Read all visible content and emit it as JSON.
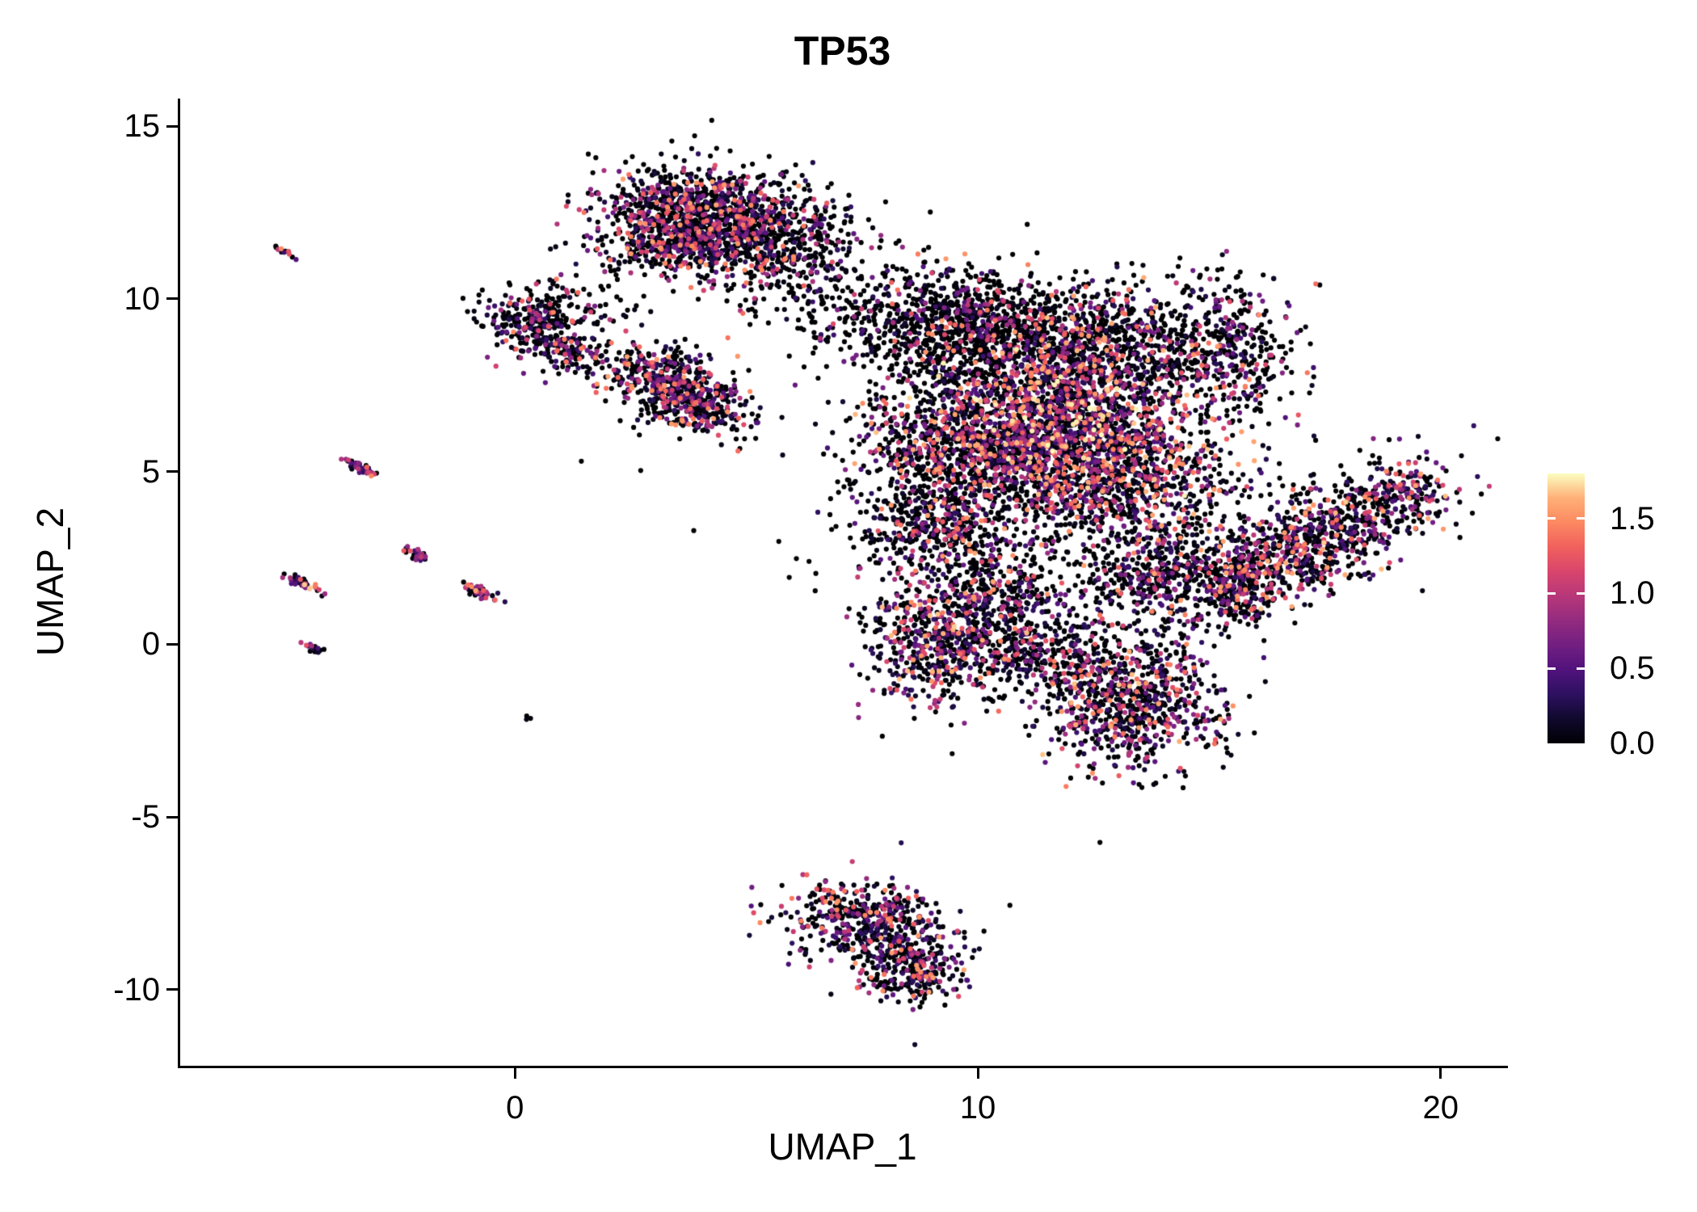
{
  "chart_data": {
    "type": "scatter",
    "title": "TP53",
    "xlabel": "UMAP_1",
    "ylabel": "UMAP_2",
    "xlim": [
      -7.25,
      21.4
    ],
    "ylim": [
      -12.2,
      15.8
    ],
    "x_ticks": [
      0,
      10,
      20
    ],
    "x_tick_labels": [
      "0",
      "10",
      "20"
    ],
    "y_ticks": [
      15,
      10,
      5,
      0,
      -5,
      -10
    ],
    "y_tick_labels": [
      "15",
      "10",
      "5",
      "0",
      "-5",
      "-10"
    ],
    "grid": false,
    "legend_position": "right",
    "background_color": "#ffffff",
    "axis_color": "#000000",
    "point_radius": 3.1,
    "seed": 20231042,
    "colorbar": {
      "min": 0,
      "max": 1.8,
      "ticks": [
        0.0,
        0.5,
        1.0,
        1.5
      ],
      "tick_labels": [
        "0.0",
        "0.5",
        "1.0",
        "1.5"
      ]
    },
    "colormap_name": "magma",
    "colormap_stops": [
      "#000004",
      "#10092d",
      "#2d1160",
      "#51127c",
      "#721f81",
      "#932b80",
      "#b73779",
      "#d8456c",
      "#f1605d",
      "#fc8961",
      "#feb078",
      "#fcfdbf"
    ],
    "clusters": [
      {
        "name": "top-cluster-core",
        "cx": 4.1,
        "cy": 12.6,
        "sx": 1.15,
        "sy": 0.62,
        "rot": -8,
        "n": 850,
        "zero_frac": 0.45,
        "emax": 1.6,
        "skew": 2.0
      },
      {
        "name": "top-cluster-lower",
        "cx": 3.4,
        "cy": 11.7,
        "sx": 0.85,
        "sy": 0.55,
        "rot": 0,
        "n": 450,
        "zero_frac": 0.45,
        "emax": 1.6,
        "skew": 2.0
      },
      {
        "name": "top-cluster-right",
        "cx": 5.4,
        "cy": 11.4,
        "sx": 0.95,
        "sy": 0.65,
        "rot": -20,
        "n": 380,
        "zero_frac": 0.55,
        "emax": 1.5,
        "skew": 2.2
      },
      {
        "name": "top-cluster-east-sparse",
        "cx": 6.4,
        "cy": 12.1,
        "sx": 0.75,
        "sy": 0.75,
        "rot": 0,
        "n": 110,
        "zero_frac": 0.75,
        "emax": 1.3,
        "skew": 2.5
      },
      {
        "name": "upper-left-cluster",
        "cx": 0.45,
        "cy": 9.4,
        "sx": 0.55,
        "sy": 0.5,
        "rot": 0,
        "n": 280,
        "zero_frac": 0.5,
        "emax": 1.5,
        "skew": 2.0
      },
      {
        "name": "upper-left-lobe",
        "cx": 1.15,
        "cy": 8.55,
        "sx": 0.42,
        "sy": 0.35,
        "rot": -30,
        "n": 110,
        "zero_frac": 0.5,
        "emax": 1.5,
        "skew": 2.0
      },
      {
        "name": "upper-bridge-sparse",
        "cx": 1.9,
        "cy": 9.9,
        "sx": 0.5,
        "sy": 0.35,
        "rot": 0,
        "n": 30,
        "zero_frac": 0.7,
        "emax": 1.2,
        "skew": 2.5
      },
      {
        "name": "mid-left-cluster",
        "cx": 3.2,
        "cy": 7.6,
        "sx": 0.78,
        "sy": 0.55,
        "rot": -15,
        "n": 420,
        "zero_frac": 0.38,
        "emax": 1.6,
        "skew": 2.0
      },
      {
        "name": "mid-left-lobe",
        "cx": 4.0,
        "cy": 6.9,
        "sx": 0.55,
        "sy": 0.4,
        "rot": -20,
        "n": 230,
        "zero_frac": 0.4,
        "emax": 1.6,
        "skew": 2.0
      },
      {
        "name": "bridge-sparse",
        "cx": 6.7,
        "cy": 9.8,
        "sx": 0.9,
        "sy": 0.55,
        "rot": -10,
        "n": 90,
        "zero_frac": 0.8,
        "emax": 1.2,
        "skew": 2.5
      },
      {
        "name": "main-upper-left",
        "cx": 9.4,
        "cy": 9.3,
        "sx": 1.15,
        "sy": 0.85,
        "rot": 0,
        "n": 850,
        "zero_frac": 0.68,
        "emax": 1.6,
        "skew": 2.3
      },
      {
        "name": "main-upper-mid",
        "cx": 12.2,
        "cy": 8.7,
        "sx": 1.4,
        "sy": 0.85,
        "rot": 0,
        "n": 950,
        "zero_frac": 0.58,
        "emax": 1.7,
        "skew": 2.0
      },
      {
        "name": "main-upper-right",
        "cx": 15.3,
        "cy": 8.7,
        "sx": 0.75,
        "sy": 1.0,
        "rot": 15,
        "n": 380,
        "zero_frac": 0.55,
        "emax": 1.6,
        "skew": 2.0
      },
      {
        "name": "main-core",
        "cx": 11.7,
        "cy": 6.5,
        "sx": 1.55,
        "sy": 1.05,
        "rot": 0,
        "n": 1650,
        "zero_frac": 0.3,
        "emax": 1.8,
        "skew": 1.7
      },
      {
        "name": "main-left",
        "cx": 9.4,
        "cy": 5.6,
        "sx": 1.0,
        "sy": 0.95,
        "rot": 0,
        "n": 600,
        "zero_frac": 0.55,
        "emax": 1.6,
        "skew": 2.0
      },
      {
        "name": "main-lower-core",
        "cx": 12.7,
        "cy": 4.8,
        "sx": 1.35,
        "sy": 0.85,
        "rot": 0,
        "n": 900,
        "zero_frac": 0.4,
        "emax": 1.7,
        "skew": 1.9
      },
      {
        "name": "main-lower-left",
        "cx": 9.1,
        "cy": 3.4,
        "sx": 0.85,
        "sy": 0.8,
        "rot": 10,
        "n": 430,
        "zero_frac": 0.55,
        "emax": 1.6,
        "skew": 2.1
      },
      {
        "name": "main-southwest-lobe",
        "cx": 9.1,
        "cy": 0.1,
        "sx": 0.75,
        "sy": 0.95,
        "rot": 0,
        "n": 520,
        "zero_frac": 0.4,
        "emax": 1.7,
        "skew": 1.9
      },
      {
        "name": "main-south-bridge",
        "cx": 10.6,
        "cy": 1.5,
        "sx": 0.8,
        "sy": 0.85,
        "rot": 0,
        "n": 360,
        "zero_frac": 0.5,
        "emax": 1.6,
        "skew": 2.0
      },
      {
        "name": "main-right-lower",
        "cx": 13.9,
        "cy": 2.2,
        "sx": 0.95,
        "sy": 0.75,
        "rot": 0,
        "n": 480,
        "zero_frac": 0.5,
        "emax": 1.6,
        "skew": 2.0
      },
      {
        "name": "main-bottom-lobe",
        "cx": 13.3,
        "cy": -1.7,
        "sx": 0.95,
        "sy": 0.95,
        "rot": -20,
        "n": 720,
        "zero_frac": 0.42,
        "emax": 1.7,
        "skew": 1.9
      },
      {
        "name": "main-bottom-bridge",
        "cx": 11.6,
        "cy": -0.4,
        "sx": 1.1,
        "sy": 0.65,
        "rot": -10,
        "n": 380,
        "zero_frac": 0.5,
        "emax": 1.6,
        "skew": 2.0
      },
      {
        "name": "main-halo-sparse",
        "cx": 11.5,
        "cy": 5.0,
        "sx": 3.0,
        "sy": 3.0,
        "rot": 0,
        "n": 260,
        "zero_frac": 0.85,
        "emax": 1.4,
        "skew": 2.5
      },
      {
        "name": "right-arm",
        "cx": 17.2,
        "cy": 3.0,
        "sx": 1.45,
        "sy": 0.7,
        "rot": 33,
        "n": 820,
        "zero_frac": 0.45,
        "emax": 1.7,
        "skew": 1.9
      },
      {
        "name": "right-arm-tip",
        "cx": 19.2,
        "cy": 4.3,
        "sx": 0.5,
        "sy": 0.45,
        "rot": 30,
        "n": 160,
        "zero_frac": 0.4,
        "emax": 1.7,
        "skew": 1.8
      },
      {
        "name": "right-arm-base",
        "cx": 15.5,
        "cy": 1.5,
        "sx": 0.6,
        "sy": 0.5,
        "rot": 30,
        "n": 200,
        "zero_frac": 0.5,
        "emax": 1.6,
        "skew": 2.0
      },
      {
        "name": "bottom-cluster",
        "cx": 7.6,
        "cy": -8.1,
        "sx": 0.92,
        "sy": 0.6,
        "rot": -12,
        "n": 470,
        "zero_frac": 0.42,
        "emax": 1.6,
        "skew": 1.9
      },
      {
        "name": "bottom-cluster-tail",
        "cx": 8.6,
        "cy": -9.3,
        "sx": 0.55,
        "sy": 0.5,
        "rot": -35,
        "n": 280,
        "zero_frac": 0.42,
        "emax": 1.6,
        "skew": 1.9
      },
      {
        "name": "streak-1",
        "cx": -5.0,
        "cy": 11.4,
        "sx": 0.14,
        "sy": 0.05,
        "rot": -30,
        "n": 12,
        "zero_frac": 0.25,
        "emax": 1.5,
        "skew": 1.3
      },
      {
        "name": "streak-2",
        "cx": -3.3,
        "cy": 5.1,
        "sx": 0.22,
        "sy": 0.06,
        "rot": -32,
        "n": 35,
        "zero_frac": 0.3,
        "emax": 1.5,
        "skew": 1.5
      },
      {
        "name": "streak-3",
        "cx": -2.1,
        "cy": 2.6,
        "sx": 0.2,
        "sy": 0.06,
        "rot": -32,
        "n": 35,
        "zero_frac": 0.3,
        "emax": 1.5,
        "skew": 1.5
      },
      {
        "name": "streak-4",
        "cx": -4.6,
        "cy": 1.75,
        "sx": 0.26,
        "sy": 0.07,
        "rot": -30,
        "n": 45,
        "zero_frac": 0.28,
        "emax": 1.7,
        "skew": 1.3
      },
      {
        "name": "streak-5",
        "cx": -0.75,
        "cy": 1.5,
        "sx": 0.24,
        "sy": 0.07,
        "rot": -30,
        "n": 45,
        "zero_frac": 0.3,
        "emax": 1.6,
        "skew": 1.5
      },
      {
        "name": "streak-6",
        "cx": -4.35,
        "cy": -0.1,
        "sx": 0.12,
        "sy": 0.06,
        "rot": -30,
        "n": 18,
        "zero_frac": 0.3,
        "emax": 1.5,
        "skew": 1.5
      },
      {
        "name": "lone-dot",
        "cx": 0.3,
        "cy": -2.1,
        "sx": 0.05,
        "sy": 0.05,
        "rot": 0,
        "n": 3,
        "zero_frac": 0.4,
        "emax": 1.2,
        "skew": 2.0
      }
    ]
  }
}
